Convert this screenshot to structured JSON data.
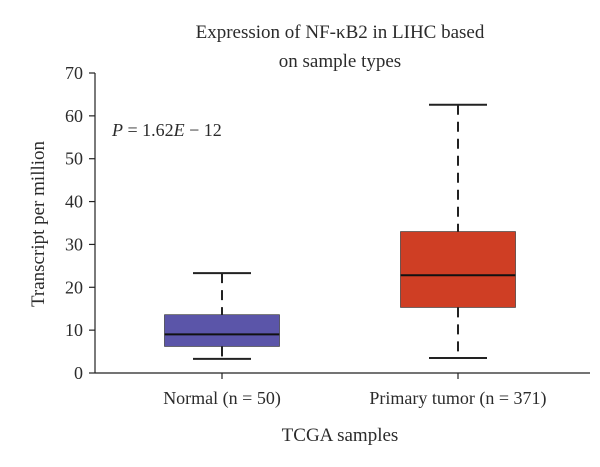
{
  "chart_data": {
    "type": "box",
    "title_line1": "Expression of NF-κB2 in LIHC based",
    "title_line2": "on sample types",
    "xlabel": "TCGA samples",
    "ylabel": "Transcript per million",
    "ylim": [
      0,
      70
    ],
    "yticks": [
      "0",
      "10",
      "20",
      "30",
      "40",
      "50",
      "60",
      "70"
    ],
    "annotation": {
      "italic_p": "P",
      "p_rest": " = 1.62",
      "italic_e": "E",
      "e_rest": " − 12"
    },
    "categories": [
      "Normal (n = 50)",
      "Primary tumor (n = 371)"
    ],
    "boxes": [
      {
        "min": 3.3,
        "q1": 6.2,
        "median": 9.0,
        "q3": 13.6,
        "max": 23.3,
        "color": "#5b55a9"
      },
      {
        "min": 3.5,
        "q1": 15.3,
        "median": 22.8,
        "q3": 33.0,
        "max": 62.6,
        "color": "#cf3e24"
      }
    ],
    "grid": false
  }
}
